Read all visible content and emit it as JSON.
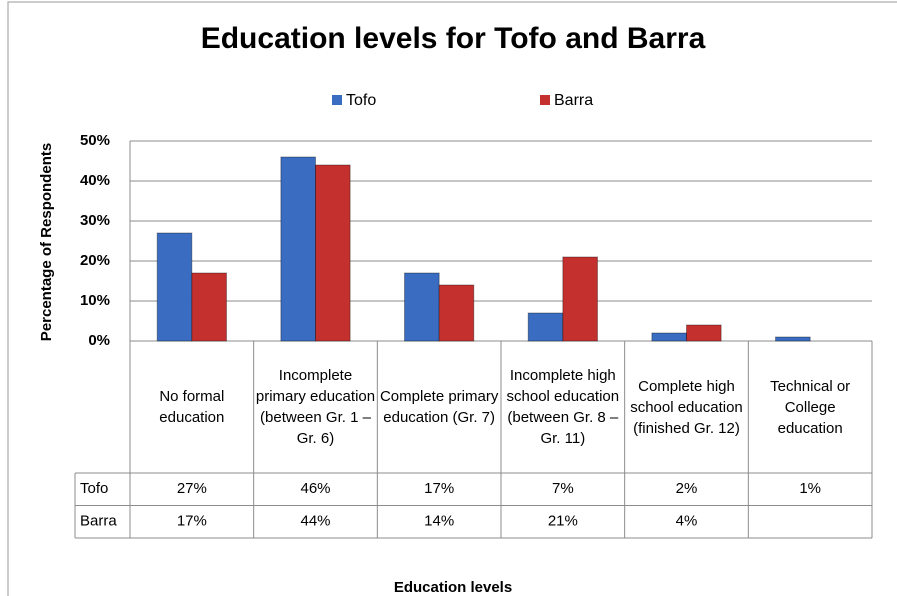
{
  "chart_data": {
    "type": "bar",
    "title": "Education levels for Tofo and Barra",
    "y_label": "Percentage of Respondents",
    "x_label": "Education levels",
    "categories": [
      "No formal education",
      "Incomplete primary education (between Gr. 1 – Gr. 6)",
      "Complete primary education (Gr. 7)",
      "Incomplete high school education (between Gr. 8 – Gr. 11)",
      "Complete high school education (finished Gr. 12)",
      "Technical or College education"
    ],
    "series": [
      {
        "name": "Tofo",
        "color": "#3a6dc2",
        "values": [
          27,
          46,
          17,
          7,
          2,
          1
        ],
        "value_labels": [
          "27%",
          "46%",
          "17%",
          "7%",
          "2%",
          "1%"
        ]
      },
      {
        "name": "Barra",
        "color": "#c3302e",
        "values": [
          17,
          44,
          14,
          21,
          4,
          null
        ],
        "value_labels": [
          "17%",
          "44%",
          "14%",
          "21%",
          "4%",
          null
        ]
      }
    ],
    "ylim": [
      0,
      50
    ],
    "yticks": [
      {
        "value": 0,
        "label": "0%"
      },
      {
        "value": 10,
        "label": "10%"
      },
      {
        "value": 20,
        "label": "20%"
      },
      {
        "value": 30,
        "label": "30%"
      },
      {
        "value": 40,
        "label": "40%"
      },
      {
        "value": 50,
        "label": "50%"
      }
    ],
    "grid": true,
    "legend": "top"
  }
}
